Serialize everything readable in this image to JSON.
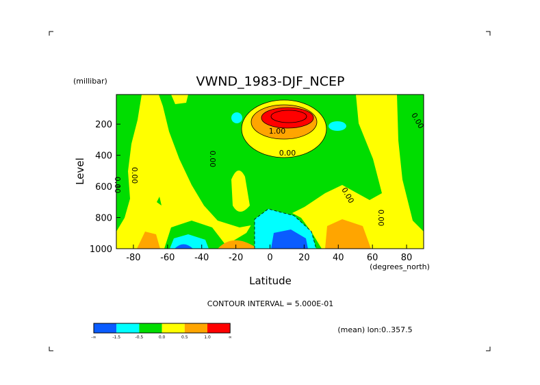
{
  "chart_data": {
    "type": "contour",
    "title": "VWND_1983-DJF_NCEP",
    "y_units": "(millibar)",
    "ylabel": "Level",
    "xlabel": "Latitude",
    "x_units": "(degrees_north)",
    "xlim": [
      -90,
      90
    ],
    "xticks": [
      -80,
      -60,
      -40,
      -20,
      0,
      20,
      40,
      60,
      80
    ],
    "ylim": [
      1000,
      10
    ],
    "yticks": [
      200,
      400,
      600,
      800,
      1000
    ],
    "contour_interval": "CONTOUR INTERVAL = 5.000E-01",
    "note": "(mean) lon:0..357.5",
    "contour_labels": [
      "1.00",
      "0.00",
      "0.00",
      "0.00",
      "0.00",
      "0.00",
      "0.00",
      "0.00"
    ],
    "colorbar": {
      "colors": [
        "#0a5cff",
        "#00ffff",
        "#00dd00",
        "#ffff00",
        "#ffa500",
        "#ff0000"
      ],
      "labels": [
        "-∞",
        "-1.5",
        "-0.5",
        "0.0",
        "0.5",
        "1.0",
        "∞"
      ]
    }
  }
}
